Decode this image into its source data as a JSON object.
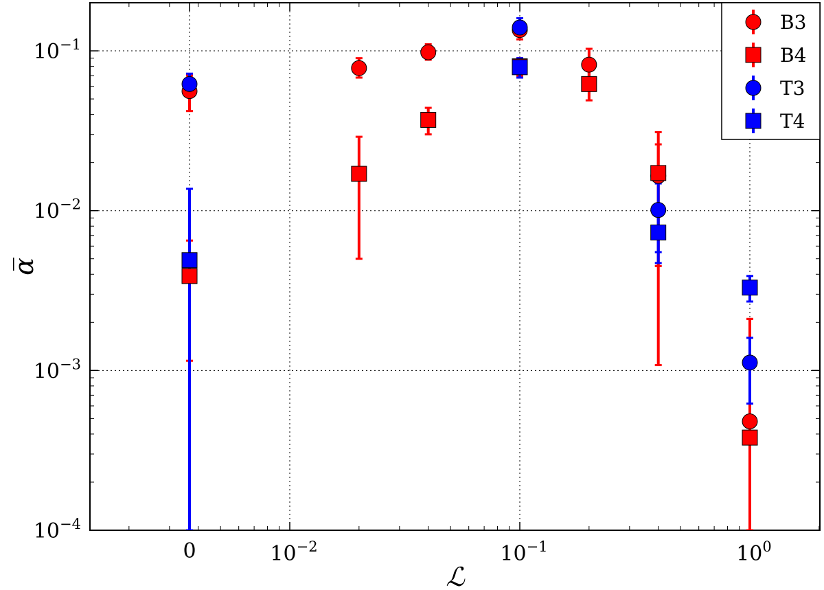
{
  "chart_data": {
    "type": "scatter",
    "title": "",
    "xlabel": "ℒ",
    "ylabel": "α̅",
    "y_scale": "log",
    "x_scale": "symlog",
    "ylim": [
      0.0001,
      0.2
    ],
    "xlim_note": "linear region around 0, log region from 0.01 to 1",
    "grid": true,
    "legend_position": "top-right",
    "x_ticks": [
      {
        "value": 0,
        "label": "0"
      },
      {
        "value": 0.01,
        "base": "10",
        "exp": "−2"
      },
      {
        "value": 0.1,
        "base": "10",
        "exp": "−1"
      },
      {
        "value": 1,
        "base": "10",
        "exp": "0"
      }
    ],
    "y_ticks": [
      {
        "value": 0.1,
        "base": "10",
        "exp": "−1"
      },
      {
        "value": 0.01,
        "base": "10",
        "exp": "−2"
      },
      {
        "value": 0.001,
        "base": "10",
        "exp": "−3"
      },
      {
        "value": 0.0001,
        "base": "10",
        "exp": "−4"
      }
    ],
    "series": [
      {
        "name": "B3",
        "marker": "circle",
        "color": "#ff0000",
        "points": [
          {
            "x": 0,
            "y": 0.056,
            "lo": 0.042,
            "hi": 0.07
          },
          {
            "x": 0.02,
            "y": 0.078,
            "lo": 0.068,
            "hi": 0.09
          },
          {
            "x": 0.04,
            "y": 0.098,
            "lo": 0.088,
            "hi": 0.11
          },
          {
            "x": 0.1,
            "y": 0.135,
            "lo": 0.118,
            "hi": 0.15
          },
          {
            "x": 0.2,
            "y": 0.082,
            "lo": 0.062,
            "hi": 0.103
          },
          {
            "x": 0.4,
            "y": 0.0165,
            "lo": 0.0045,
            "hi": 0.026
          },
          {
            "x": 1,
            "y": 0.00048,
            "lo": 0.0001,
            "hi": 0.0021
          }
        ]
      },
      {
        "name": "B4",
        "marker": "square",
        "color": "#ff0000",
        "points": [
          {
            "x": 0,
            "y": 0.0039,
            "lo": 0.00115,
            "hi": 0.0065
          },
          {
            "x": 0.02,
            "y": 0.017,
            "lo": 0.005,
            "hi": 0.029
          },
          {
            "x": 0.04,
            "y": 0.037,
            "lo": 0.03,
            "hi": 0.044
          },
          {
            "x": 0.1,
            "y": 0.08,
            "lo": 0.07,
            "hi": 0.09
          },
          {
            "x": 0.2,
            "y": 0.062,
            "lo": 0.049,
            "hi": 0.076
          },
          {
            "x": 0.4,
            "y": 0.0172,
            "lo": 0.00108,
            "hi": 0.031
          },
          {
            "x": 1,
            "y": 0.00038,
            "lo": 0.0001,
            "hi": 0.0021
          }
        ]
      },
      {
        "name": "T3",
        "marker": "circle",
        "color": "#0000ff",
        "points": [
          {
            "x": 0,
            "y": 0.062,
            "lo": 0.052,
            "hi": 0.072
          },
          {
            "x": 0.1,
            "y": 0.14,
            "lo": 0.125,
            "hi": 0.16
          },
          {
            "x": 0.4,
            "y": 0.0101,
            "lo": 0.0055,
            "hi": 0.0148
          },
          {
            "x": 1,
            "y": 0.00112,
            "lo": 0.00062,
            "hi": 0.0016
          }
        ]
      },
      {
        "name": "T4",
        "marker": "square",
        "color": "#0000ff",
        "points": [
          {
            "x": 0,
            "y": 0.0049,
            "lo": 0.0001,
            "hi": 0.0137
          },
          {
            "x": 0.1,
            "y": 0.079,
            "lo": 0.068,
            "hi": 0.09
          },
          {
            "x": 0.4,
            "y": 0.0073,
            "lo": 0.0047,
            "hi": 0.0098
          },
          {
            "x": 1,
            "y": 0.0033,
            "lo": 0.0027,
            "hi": 0.0039
          }
        ]
      }
    ]
  }
}
